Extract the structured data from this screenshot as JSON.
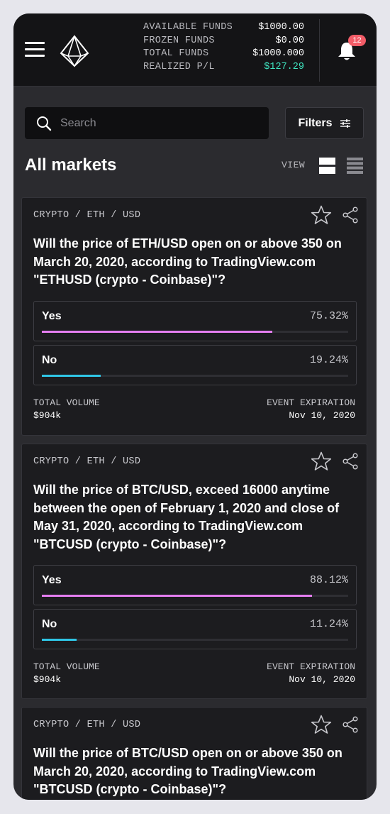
{
  "header": {
    "funds": [
      {
        "label": "AVAILABLE FUNDS",
        "value": "$1000.00"
      },
      {
        "label": "FROZEN FUNDS",
        "value": "$0.00"
      },
      {
        "label": "TOTAL FUNDS",
        "value": "$1000.000"
      },
      {
        "label": "REALIZED P/L",
        "value": "$127.29"
      }
    ],
    "notification_count": "12",
    "colors": {
      "positive": "#3fe6c1",
      "badge": "#f25c67"
    }
  },
  "search": {
    "placeholder": "Search",
    "value": ""
  },
  "filters_label": "Filters",
  "page_title": "All markets",
  "view_label": "VIEW",
  "colors": {
    "yes_bar": "#e47ef0",
    "no_bar": "#2fc6e6"
  },
  "markets": [
    {
      "category": "CRYPTO / ETH / USD",
      "question": "Will the price of ETH/USD open on or above 350 on March 20, 2020, according to TradingView.com \"ETHUSD (crypto - Coinbase)\"?",
      "options": [
        {
          "label": "Yes",
          "percent": "75.32%",
          "fraction": 0.7532
        },
        {
          "label": "No",
          "percent": "19.24%",
          "fraction": 0.1924
        }
      ],
      "volume_label": "TOTAL VOLUME",
      "volume": "$904k",
      "expiration_label": "EVENT EXPIRATION",
      "expiration": "Nov 10, 2020"
    },
    {
      "category": "CRYPTO / ETH / USD",
      "question": "Will the price of BTC/USD, exceed 16000 anytime between the open of February 1, 2020 and close of May 31, 2020, according to TradingView.com \"BTCUSD (crypto - Coinbase)\"?",
      "options": [
        {
          "label": "Yes",
          "percent": "88.12%",
          "fraction": 0.8812
        },
        {
          "label": "No",
          "percent": "11.24%",
          "fraction": 0.1124
        }
      ],
      "volume_label": "TOTAL VOLUME",
      "volume": "$904k",
      "expiration_label": "EVENT EXPIRATION",
      "expiration": "Nov 10, 2020"
    },
    {
      "category": "CRYPTO / ETH / USD",
      "question": "Will the price of BTC/USD open on or above 350 on March 20, 2020, according to TradingView.com \"BTCUSD (crypto - Coinbase)\"?"
    }
  ]
}
